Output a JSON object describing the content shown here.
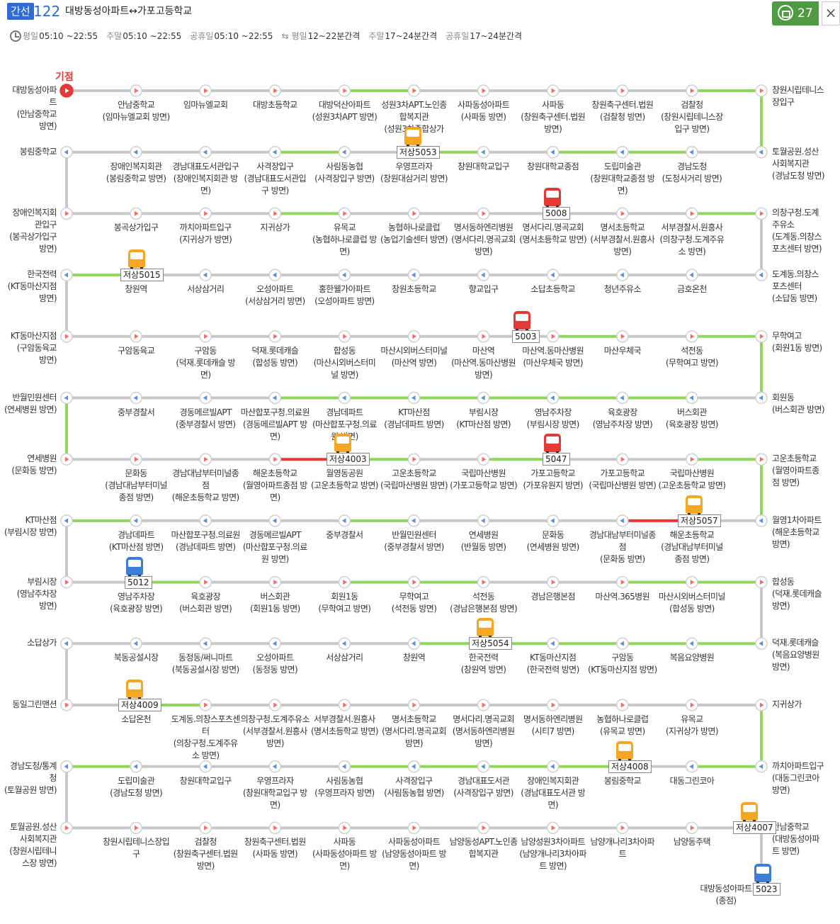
{
  "header": {
    "route_type": "간선",
    "route_number": "122",
    "route_name": "대방동성아파트↔가포고등학교",
    "schedule": [
      {
        "label": "평일",
        "value": "05:10 ~22:55"
      },
      {
        "label": "주말",
        "value": "05:10 ~22:55"
      },
      {
        "label": "공휴일",
        "value": "05:10 ~22:55"
      }
    ],
    "interval": [
      {
        "label": "평일",
        "value": "12~22분간격"
      },
      {
        "label": "주말",
        "value": "17~24분간격"
      },
      {
        "label": "공휴일",
        "value": "17~24분간격"
      }
    ],
    "bus_count": "27",
    "close_label": "×"
  },
  "terminal_label": "기점",
  "rows": [
    {
      "dir": "right",
      "left": "대방동성아파\n트\n(안남중학교\n방면)",
      "right": "창원시립테니스\n장입구",
      "stops": [
        "안남중학교\n(임마뉴엘교회 방면)",
        "임마뉴엘교회",
        "대방초등학교",
        "대방덕산아파트\n(성원3차APT 방면)",
        "성원3차APT.노인종\n합복지관\n(성원3차종합상가\n앞)",
        "사파동성아파트\n(사파동 방면)",
        "사파동\n(창원축구센터.법원\n방면)",
        "창원축구센터.법원\n(검찰청 방면)",
        "검찰청\n(창원시립테니스장\n입구 방면)"
      ],
      "segments": [
        "g",
        "g",
        "g",
        "g",
        "G",
        "g",
        "g",
        "g",
        "g",
        "G"
      ]
    },
    {
      "dir": "left",
      "left": "봉림중학교",
      "right": "토월공원.성산\n사회복지관\n(경남도청 방면)",
      "stops": [
        "장애인복지회관\n(봉림중학교 방면)",
        "경남대표도서관입구\n(장애인복지회관 방\n면)",
        "사격장입구\n(경남대표도서관입\n구 방면)",
        "사림동농협\n(사격장입구 방면)",
        "우영프라자\n(창원대삼거리 방면)",
        "창원대학교입구",
        "창원대학교종점",
        "도립미술관\n(창원대학교종점 방\n면)",
        "경남도청\n(도청사거리 방면)"
      ],
      "segments": [
        "g",
        "g",
        "g",
        "G",
        "g",
        "G",
        "g",
        "G",
        "G",
        "g"
      ]
    },
    {
      "dir": "right",
      "left": "장애인복지회\n관입구\n(봉곡상가입구\n방면)",
      "right": "의창구청.도계\n주유소\n(도계동.의창스\n포츠센터 방면)",
      "stops": [
        "봉곡상가입구",
        "까치아파트입구\n(지귀상가 방면)",
        "지귀상가",
        "유목교\n(농협하나로클럽 방\n면)",
        "농협하나로클럽\n(농업기술센터 방면)",
        "명서동하엔리병원\n(명서다리.명곡교회\n방면)",
        "명서다리.명곡교회\n(명서초등학교 방면)",
        "명서초등학교\n(서부경찰서.원흥사\n방면)",
        "서부경찰서.원흥사\n(의창구청.도계주유\n소 방면)"
      ],
      "segments": [
        "g",
        "g",
        "g",
        "G",
        "g",
        "g",
        "g",
        "g",
        "g",
        "G"
      ]
    },
    {
      "dir": "left",
      "left": "한국전력\n(KT동마산지점\n방면)",
      "right": "도계동.의창스\n포츠센터\n(소답동 방면)",
      "stops": [
        "창원역",
        "서상삼거리",
        "오성아파트\n(서상삼거리 방면)",
        "홍한웰가아파트\n(오성아파트 방면)",
        "창원초등학교",
        "향교입구",
        "소답초등학교",
        "청년주유소",
        "금호온천"
      ],
      "segments": [
        "G",
        "g",
        "g",
        "g",
        "g",
        "g",
        "g",
        "g",
        "g",
        "g"
      ]
    },
    {
      "dir": "right",
      "left": "KT동마산지점\n(구암동육교\n방면)",
      "right": "무학여고\n(회원1동 방면)",
      "stops": [
        "구암동육교",
        "구암동\n(덕재.롯데캐슬 방면)",
        "덕재.롯데캐슬\n(합성동 방면)",
        "합성동\n(마산시외버스터미\n널 방면)",
        "마산시외버스터미널\n(마산역 방면)",
        "마산역\n(마산역.동마산병원\n방면)",
        "마산역.동마산병원\n(마산우체국 방면)",
        "마산우체국",
        "석전동\n(무학여고 방면)"
      ],
      "segments": [
        "g",
        "g",
        "g",
        "g",
        "g",
        "g",
        "g",
        "G",
        "g",
        "G"
      ]
    },
    {
      "dir": "left",
      "left": "반월민원센터\n(연세병원 방면)",
      "right": "회원동\n(버스회관 방면)",
      "stops": [
        "중부경찰서",
        "경동메르빌APT\n(중부경찰서 방면)",
        "마산합포구청.의료원\n(경동메르빌APT 방\n면)",
        "경남데파트\n(마산합포구청.의료\n원 방면)",
        "KT마산점\n(경남데파트 방면)",
        "부림시장\n(KT마산점 방면)",
        "영남주차장\n(부림시장 방면)",
        "육호광장\n(영남주차장 방면)",
        "버스회관\n(육호광장 방면)"
      ],
      "segments": [
        "g",
        "g",
        "g",
        "G",
        "G",
        "G",
        "G",
        "G",
        "G",
        "g"
      ]
    },
    {
      "dir": "right",
      "left": "연세병원\n(문화동 방면)",
      "right": "고운초등학교\n(월영아파트종\n점 방면)",
      "stops": [
        "문화동\n(경남대남부터미널\n종점 방면)",
        "경남대남부터미널종\n점\n(해운초등학교 방면)",
        "해운초등학교\n(월영아파트종점 방\n면)",
        "월영동공원\n(고운초등학교 방면)",
        "고운초등학교\n(국립마산병원 방면)",
        "국립마산병원\n(가포고등학교 방면)",
        "가포고등학교\n(가포유원지 방면)",
        "가포고등학교\n(국립마산병원 방면)",
        "국립마산병원\n(고운초등학교 방면)"
      ],
      "segments": [
        "g",
        "g",
        "g",
        "R",
        "G",
        "g",
        "G",
        "g",
        "g",
        "G"
      ]
    },
    {
      "dir": "left",
      "left": "KT마산점\n(부림시장 방면)",
      "right": "월영1차아파트\n(해운초등학교\n방면)",
      "stops": [
        "경남데파트\n(KT마산점 방면)",
        "마산합포구청.의료원\n(경남데파트 방면)",
        "경동메르빌APT\n(마산합포구청.의료\n원 방면)",
        "중부경찰서",
        "반월민원센터\n(중부경찰서 방면)",
        "연세병원\n(반월동 방면)",
        "문화동\n(연세병원 방면)",
        "경남대남부터미널종\n점\n(문화동 방면)",
        "해운초등학교\n(경남대남부터미널\n종점 방면)"
      ],
      "segments": [
        "G",
        "g",
        "g",
        "g",
        "G",
        "g",
        "g",
        "g",
        "R",
        "g"
      ]
    },
    {
      "dir": "right",
      "left": "부림시장\n(영남주차장\n방면)",
      "right": "합성동\n(덕재.롯데캐슬\n방면)",
      "stops": [
        "영남주차장\n(육호광장 방면)",
        "육호광장\n(버스회관 방면)",
        "버스회관\n(회원1동 방면)",
        "회원1동\n(무학여고 방면)",
        "무학여고\n(석전동 방면)",
        "석전동\n(경남은행본점 방면)",
        "경남은행본점",
        "마산역.365병원",
        "마산시외버스터미널\n(합성동 방면)"
      ],
      "segments": [
        "g",
        "G",
        "g",
        "g",
        "G",
        "G",
        "g",
        "g",
        "G",
        "G"
      ]
    },
    {
      "dir": "left",
      "left": "소답상가",
      "right": "덕재.롯데캐슬\n(복음요양병원\n방면)",
      "stops": [
        "북동공설시장",
        "동정동/써니마트\n(북동공설시장 방면)",
        "오성아파트\n(동정동 방면)",
        "서상삼거리",
        "창원역",
        "한국전력\n(창원역 방면)",
        "KT동마산지점\n(한국전력 방면)",
        "구암동\n(KT동마산지점 방면)",
        "복음요양병원"
      ],
      "segments": [
        "g",
        "g",
        "g",
        "g",
        "g",
        "G",
        "G",
        "G",
        "G",
        "G"
      ]
    },
    {
      "dir": "right",
      "left": "동일그린맨션",
      "right": "지귀상가",
      "stops": [
        "소답온천",
        "도계동.의창스포츠센\n터\n(의창구청.도계주유\n소 방면)",
        "의창구청.도계주유소\n(서부경찰서.원흥사\n방면)",
        "서부경찰서.원흥사\n(명서초등학교 방면)",
        "명서초등학교\n(명서다리.명곡교회\n방면)",
        "명서다리.명곡교회\n(명서동하엔리병원\n방면)",
        "명서동하엔리병원\n(시티7 방면)",
        "농협하나로클럽\n(유목교 방면)",
        "유목교\n(지귀상가 방면)"
      ],
      "segments": [
        "g",
        "G",
        "g",
        "g",
        "g",
        "g",
        "g",
        "g",
        "g",
        "g"
      ]
    },
    {
      "dir": "left",
      "left": "경남도청/통계\n청\n(토월공원 방면)",
      "right": "까치아파트입구\n(대동그린코아\n방면)",
      "stops": [
        "도립미술관\n(경남도청 방면)",
        "창원대학교입구",
        "우영프라자\n(창원대학교입구 방\n면)",
        "사림동농협\n(우영프라자 방면)",
        "사격장입구\n(사림동농협 방면)",
        "경남대표도서관\n(사격장입구 방면)",
        "장애인복지회관\n(경남대표도서관 방\n면)",
        "봉림중학교",
        "대동그린코아"
      ],
      "segments": [
        "G",
        "g",
        "g",
        "g",
        "G",
        "G",
        "G",
        "G",
        "g",
        "G"
      ]
    },
    {
      "dir": "right",
      "left": "토월공원.성산\n사회복지관\n(창원시립테니\n스장 방면)",
      "right": "안남중학교\n(대방동성아파\n트 방면)",
      "stops": [
        "창원시립테니스장입\n구",
        "검찰청\n(창원축구센터.법원\n방면)",
        "창원축구센터.법원\n(사파동 방면)",
        "사파동\n(사파동성아파트 방\n면)",
        "사파동성아파트\n(남양동성아파트 방\n면)",
        "남양동성APT.노인종\n합복지관",
        "남양성원3차아파트\n(남양개나리3차아파\n트 방면)",
        "남양개나리3차아파\n트",
        "남양동주택"
      ],
      "segments": [
        "g",
        "g",
        "g",
        "g",
        "g",
        "g",
        "g",
        "g",
        "g",
        "g"
      ]
    }
  ],
  "final_stop": "대방동성아파트\n(종점)",
  "buses": [
    {
      "plate": "저상5053",
      "type": "orange",
      "row": 1,
      "at": 583
    },
    {
      "plate": "5008",
      "type": "red",
      "row": 2,
      "at": 780
    },
    {
      "plate": "저상5015",
      "type": "orange",
      "row": 3,
      "at": 193
    },
    {
      "plate": "5003",
      "type": "red",
      "row": 4,
      "at": 737
    },
    {
      "plate": "저상4003",
      "type": "orange",
      "row": 6,
      "at": 484
    },
    {
      "plate": "5047",
      "type": "red",
      "row": 6,
      "at": 780
    },
    {
      "plate": "저상5057",
      "type": "orange",
      "row": 7,
      "at": 980
    },
    {
      "plate": "5012",
      "type": "blue",
      "row": 8,
      "at": 190
    },
    {
      "plate": "저상5054",
      "type": "orange",
      "row": 9,
      "at": 685
    },
    {
      "plate": "저상4009",
      "type": "orange",
      "row": 10,
      "at": 190
    },
    {
      "plate": "저상4008",
      "type": "orange",
      "row": 11,
      "at": 882
    },
    {
      "plate": "저상4007",
      "type": "orange",
      "row": 12,
      "at": 1058
    },
    {
      "plate": "5023",
      "type": "blue",
      "row": 13,
      "at": 1077
    }
  ],
  "colors": {
    "line_gray": "#c8c8c8",
    "line_green": "#8fd65b",
    "line_red": "#e53935",
    "node_right": "#f26b6b",
    "node_left": "#5b8fd8",
    "bus_orange": "#f5a623",
    "bus_red": "#e53935",
    "bus_blue": "#3b7dd8",
    "accent": "#2f6bd8"
  }
}
